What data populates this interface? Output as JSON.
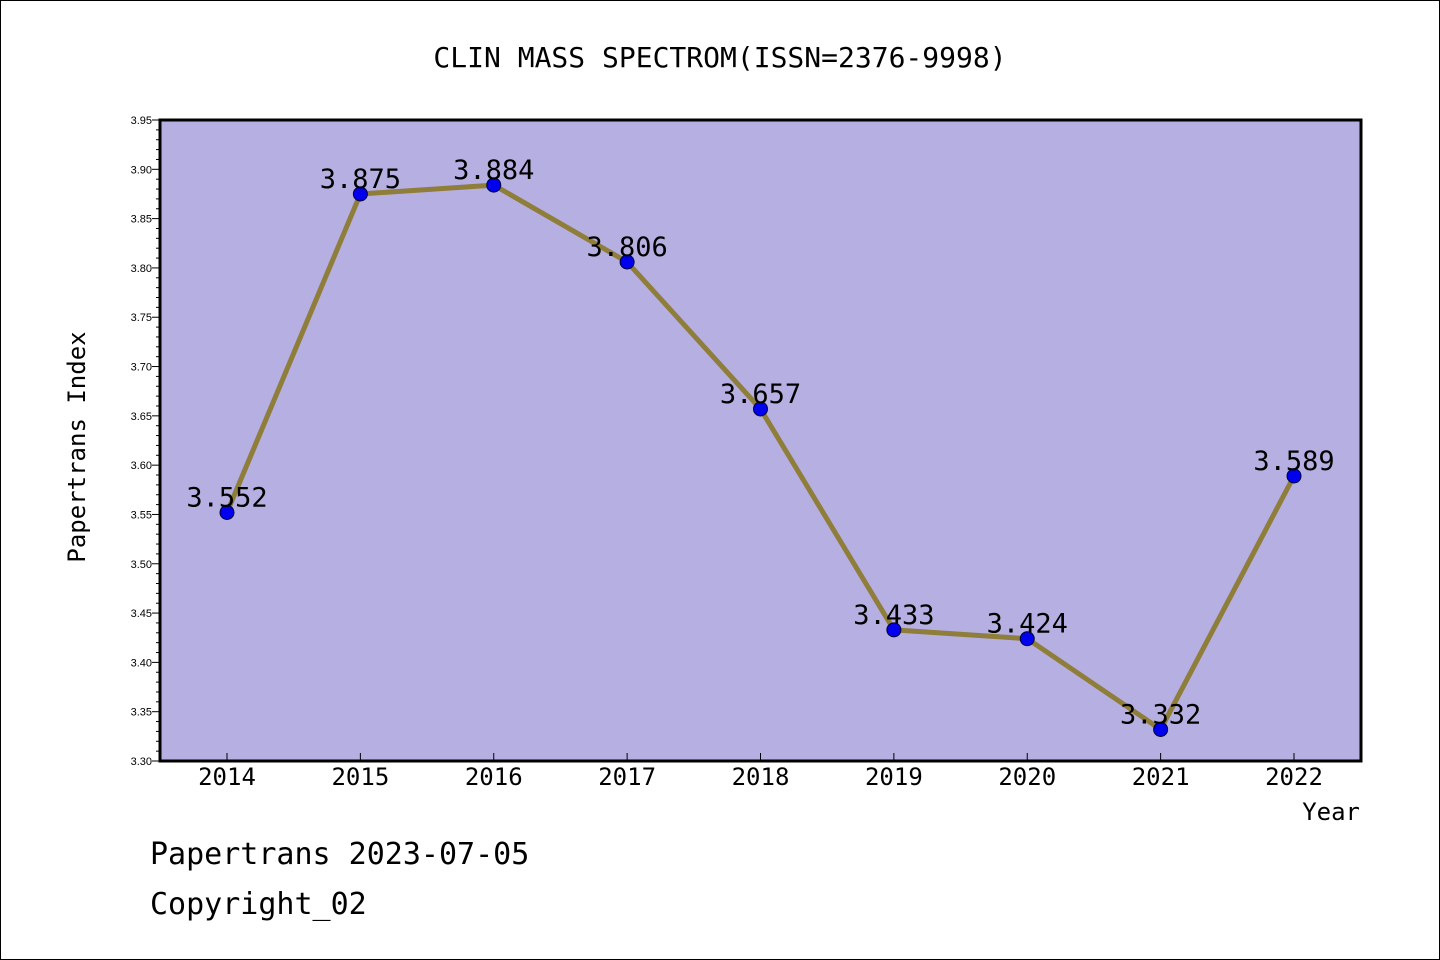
{
  "chart_data": {
    "type": "line",
    "title": "CLIN MASS SPECTROM(ISSN=2376-9998)",
    "xlabel": "Year",
    "ylabel": "Papertrans Index",
    "categories": [
      "2014",
      "2015",
      "2016",
      "2017",
      "2018",
      "2019",
      "2020",
      "2021",
      "2022"
    ],
    "series": [
      {
        "values": [
          3.552,
          3.875,
          3.884,
          3.806,
          3.657,
          3.433,
          3.424,
          3.332,
          3.589
        ],
        "labels": [
          "3.552",
          "3.875",
          "3.884",
          "3.806",
          "3.657",
          "3.433",
          "3.424",
          "3.332",
          "3.589"
        ]
      }
    ],
    "ylim": [
      3.3,
      3.95
    ],
    "yticks": [
      "3.30",
      "3.35",
      "3.40",
      "3.45",
      "3.50",
      "3.55",
      "3.60",
      "3.65",
      "3.70",
      "3.75",
      "3.80",
      "3.85",
      "3.90",
      "3.95"
    ],
    "grid": false,
    "colors": {
      "plot_background": "#b5afe2",
      "line": "#8f7d3a",
      "marker": "#0000ee"
    }
  },
  "footer": {
    "line1": "Papertrans 2023-07-05",
    "line2": "Copyright_02"
  }
}
